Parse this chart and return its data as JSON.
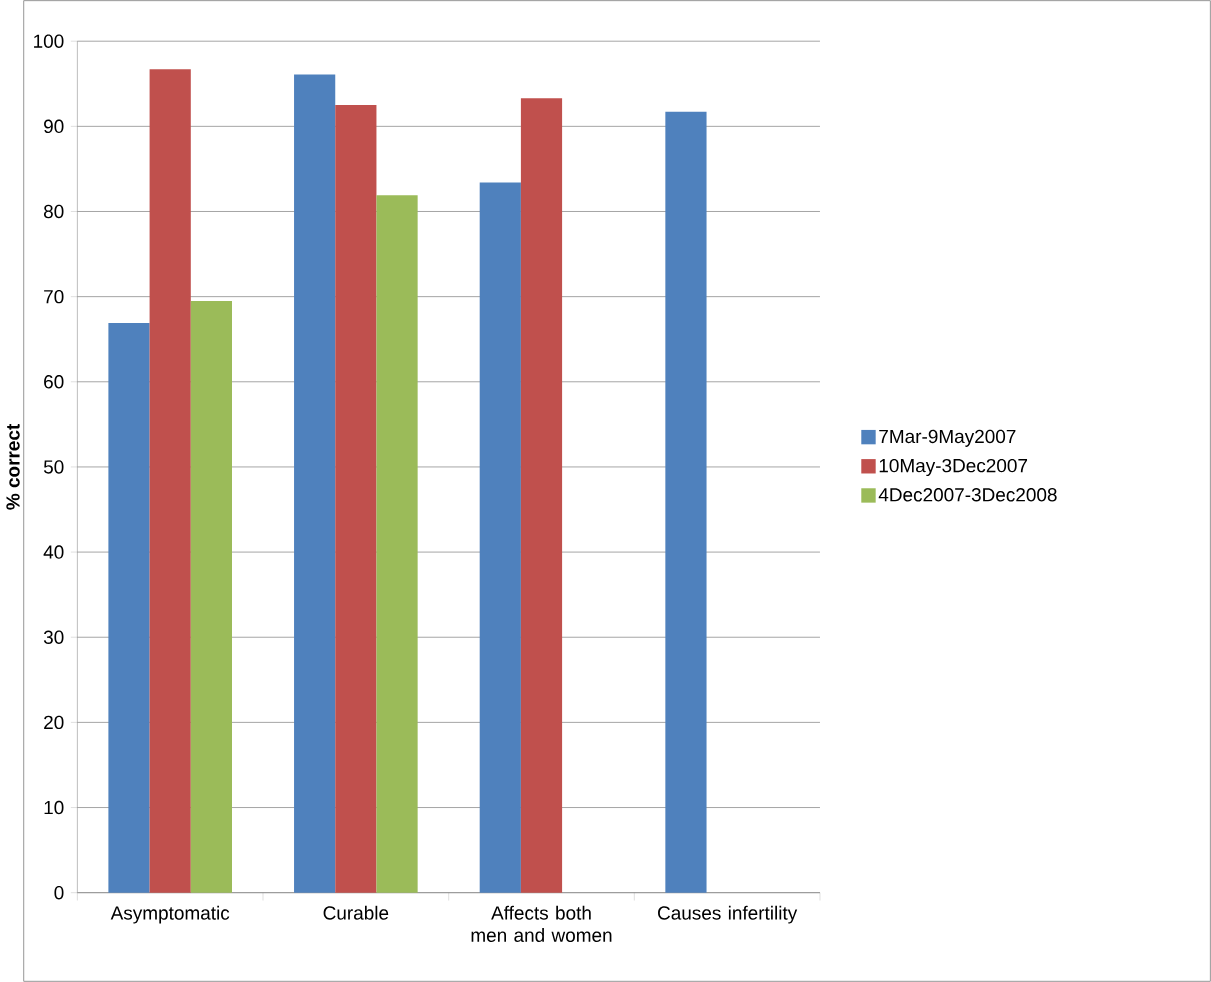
{
  "chart_data": {
    "type": "bar",
    "ylabel": "% correct",
    "categories": [
      "Asymptomatic",
      "Curable",
      "Affects both men and women",
      "Causes infertility"
    ],
    "series": [
      {
        "name": "7Mar-9May2007",
        "color": "#4f81bd",
        "values": [
          66.9,
          96.1,
          83.4,
          91.7
        ]
      },
      {
        "name": "10May-3Dec2007",
        "color": "#c0504d",
        "values": [
          96.7,
          92.5,
          93.3,
          null
        ]
      },
      {
        "name": "4Dec2007-3Dec2008",
        "color": "#9bbb59",
        "values": [
          69.5,
          81.9,
          null,
          null
        ]
      }
    ],
    "ylim": [
      0,
      100
    ],
    "yticks": [
      0,
      10,
      20,
      30,
      40,
      50,
      60,
      70,
      80,
      90,
      100
    ],
    "grid": "y",
    "legend": "right"
  }
}
